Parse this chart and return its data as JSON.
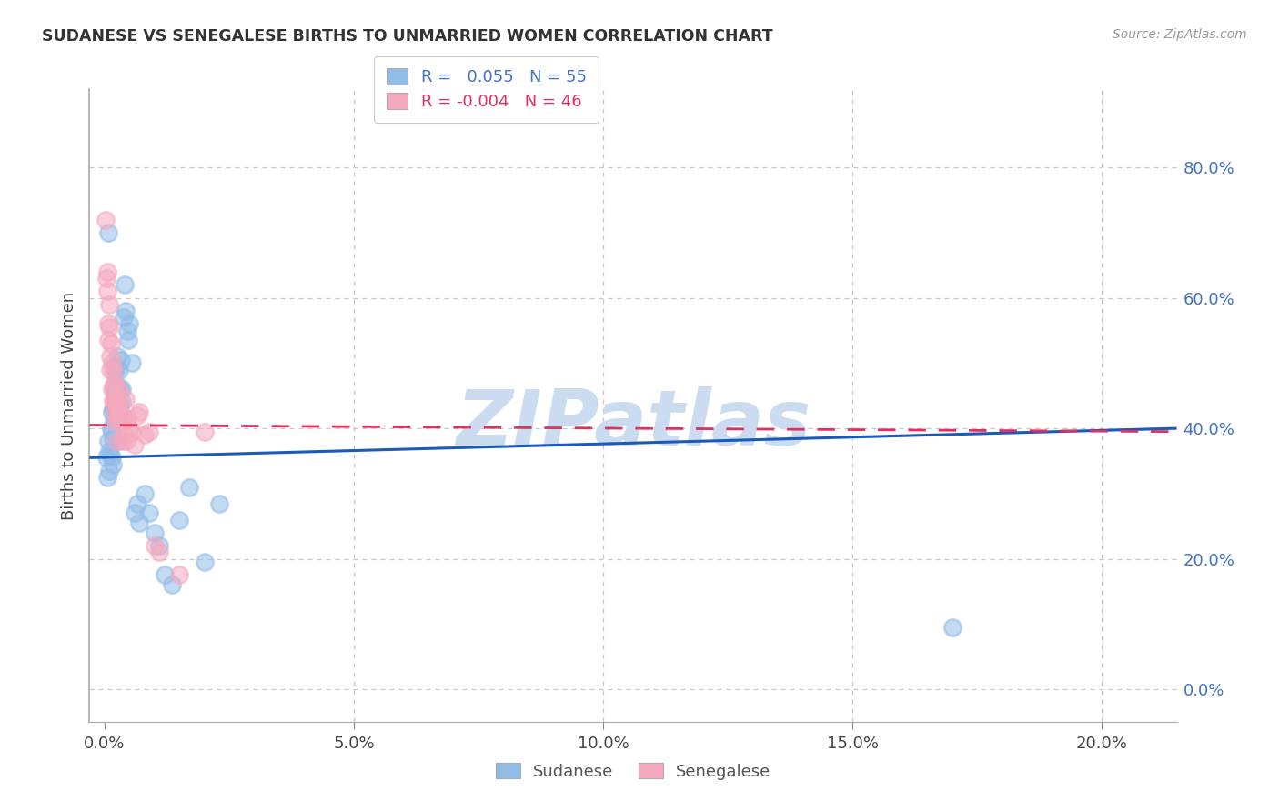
{
  "title": "SUDANESE VS SENEGALESE BIRTHS TO UNMARRIED WOMEN CORRELATION CHART",
  "source": "Source: ZipAtlas.com",
  "xlabel_ticks": [
    0.0,
    0.05,
    0.1,
    0.15,
    0.2
  ],
  "ylabel_ticks": [
    0.0,
    0.2,
    0.4,
    0.6,
    0.8
  ],
  "xlim": [
    -0.003,
    0.215
  ],
  "ylim": [
    -0.05,
    0.92
  ],
  "sudanese_R": "0.055",
  "sudanese_N": "55",
  "senegalese_R": "-0.004",
  "senegalese_N": "46",
  "sudanese_color": "#90bce8",
  "senegalese_color": "#f5a8be",
  "sudanese_line_color": "#1a5ab8",
  "senegalese_line_color": "#e03060",
  "background_color": "#ffffff",
  "watermark_text": "ZIPatlas",
  "watermark_color": "#ccdcf0",
  "ylabel": "Births to Unmarried Women",
  "sudanese_x": [
    0.0003,
    0.0006,
    0.0008,
    0.0008,
    0.001,
    0.001,
    0.0012,
    0.0013,
    0.0014,
    0.0014,
    0.0015,
    0.0016,
    0.0017,
    0.0017,
    0.0018,
    0.0019,
    0.002,
    0.002,
    0.0021,
    0.0022,
    0.0023,
    0.0024,
    0.0025,
    0.0025,
    0.0026,
    0.0027,
    0.0028,
    0.0029,
    0.003,
    0.0031,
    0.0032,
    0.0033,
    0.0034,
    0.0035,
    0.0038,
    0.004,
    0.0042,
    0.0045,
    0.0048,
    0.005,
    0.0055,
    0.006,
    0.0065,
    0.007,
    0.008,
    0.009,
    0.01,
    0.011,
    0.012,
    0.0135,
    0.015,
    0.017,
    0.02,
    0.023,
    0.17
  ],
  "sudanese_y": [
    0.355,
    0.325,
    0.7,
    0.38,
    0.365,
    0.335,
    0.36,
    0.4,
    0.395,
    0.355,
    0.425,
    0.385,
    0.345,
    0.43,
    0.46,
    0.415,
    0.465,
    0.43,
    0.495,
    0.445,
    0.49,
    0.455,
    0.51,
    0.465,
    0.455,
    0.42,
    0.38,
    0.425,
    0.49,
    0.46,
    0.435,
    0.505,
    0.44,
    0.46,
    0.57,
    0.62,
    0.58,
    0.55,
    0.535,
    0.56,
    0.5,
    0.27,
    0.285,
    0.255,
    0.3,
    0.27,
    0.24,
    0.22,
    0.175,
    0.16,
    0.26,
    0.31,
    0.195,
    0.285,
    0.095
  ],
  "senegalese_x": [
    0.0002,
    0.0004,
    0.0005,
    0.0006,
    0.0007,
    0.0008,
    0.0009,
    0.001,
    0.0011,
    0.0012,
    0.0013,
    0.0014,
    0.0015,
    0.0016,
    0.0017,
    0.0018,
    0.0019,
    0.002,
    0.0021,
    0.0022,
    0.0023,
    0.0024,
    0.0025,
    0.0026,
    0.0027,
    0.0028,
    0.003,
    0.0032,
    0.0034,
    0.0036,
    0.0038,
    0.004,
    0.0042,
    0.0044,
    0.0046,
    0.005,
    0.0055,
    0.006,
    0.0065,
    0.007,
    0.008,
    0.009,
    0.01,
    0.011,
    0.02,
    0.015
  ],
  "senegalese_y": [
    0.72,
    0.63,
    0.61,
    0.64,
    0.56,
    0.535,
    0.59,
    0.555,
    0.51,
    0.49,
    0.53,
    0.5,
    0.46,
    0.44,
    0.49,
    0.465,
    0.445,
    0.425,
    0.47,
    0.44,
    0.41,
    0.38,
    0.45,
    0.415,
    0.46,
    0.43,
    0.44,
    0.42,
    0.41,
    0.38,
    0.415,
    0.39,
    0.445,
    0.38,
    0.415,
    0.4,
    0.395,
    0.375,
    0.42,
    0.425,
    0.39,
    0.395,
    0.22,
    0.21,
    0.395,
    0.175
  ]
}
